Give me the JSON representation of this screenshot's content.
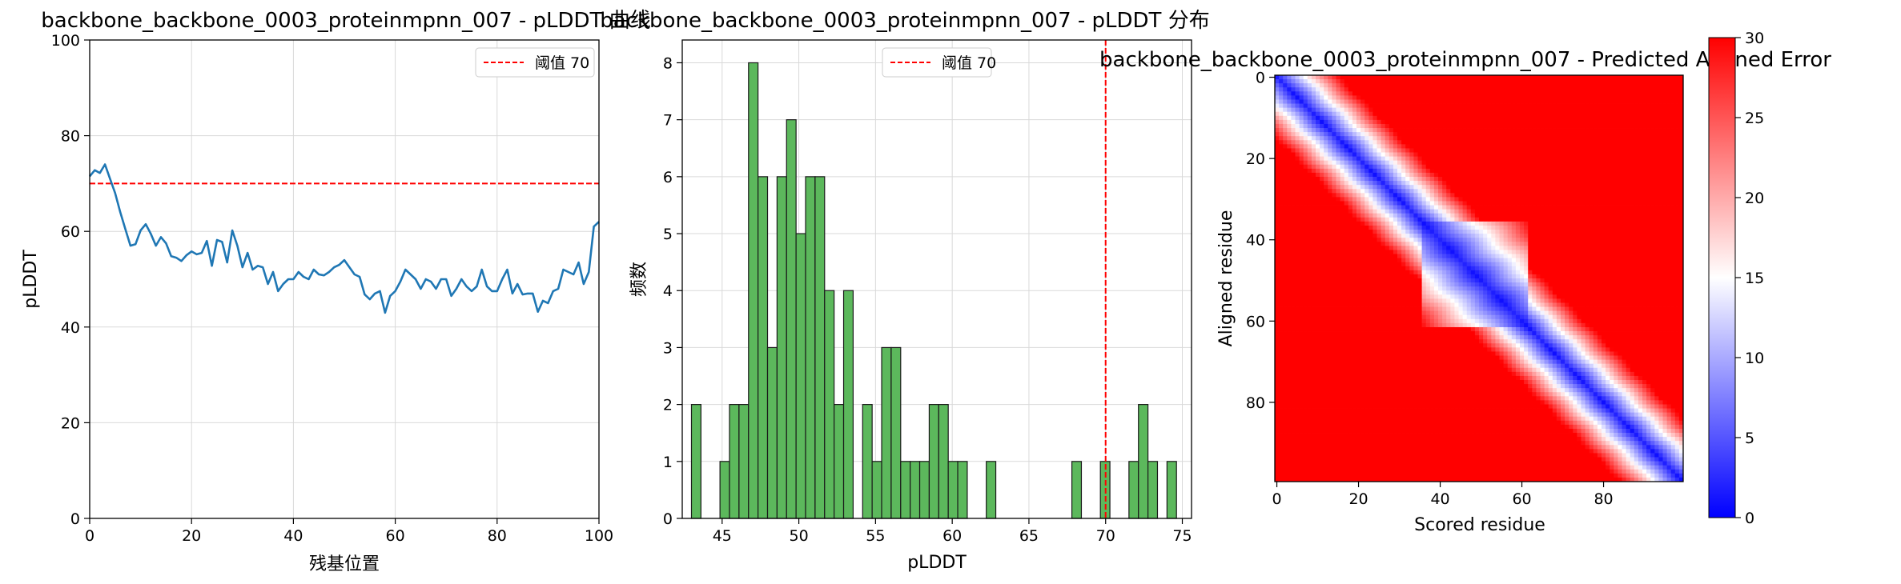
{
  "colors": {
    "line": "#1f77b4",
    "threshold": "#ff0000",
    "hist_fill": "#5cb85c",
    "hist_edge": "#1a1a1a",
    "grid": "#d9d9d9",
    "cmap_low": "#0000ff",
    "cmap_mid": "#ffffff",
    "cmap_high": "#ff0000"
  },
  "legend_label": "阈值 70",
  "chart_data": [
    {
      "type": "line",
      "title": "backbone_backbone_0003_proteinmpnn_007 - pLDDT 曲线",
      "xlabel": "残基位置",
      "ylabel": "pLDDT",
      "xlim": [
        0,
        100
      ],
      "ylim": [
        0,
        100
      ],
      "xticks": [
        "0",
        "20",
        "40",
        "60",
        "80",
        "100"
      ],
      "yticks": [
        "0",
        "20",
        "40",
        "60",
        "80",
        "100"
      ],
      "grid": true,
      "legend": "top-right",
      "threshold": 70,
      "series": [
        {
          "x": [
            0,
            1,
            2,
            3,
            4,
            5,
            6,
            7,
            8,
            9,
            10,
            11,
            12,
            13,
            14,
            15,
            16,
            17,
            18,
            19,
            20,
            21,
            22,
            23,
            24,
            25,
            26,
            27,
            28,
            29,
            30,
            31,
            32,
            33,
            34,
            35,
            36,
            37,
            38,
            39,
            40,
            41,
            42,
            43,
            44,
            45,
            46,
            47,
            48,
            49,
            50,
            51,
            52,
            53,
            54,
            55,
            56,
            57,
            58,
            59,
            60,
            61,
            62,
            63,
            64,
            65,
            66,
            67,
            68,
            69,
            70,
            71,
            72,
            73,
            74,
            75,
            76,
            77,
            78,
            79,
            80,
            81,
            82,
            83,
            84,
            85,
            86,
            87,
            88,
            89,
            90,
            91,
            92,
            93,
            94,
            95,
            96,
            97,
            98,
            99,
            100
          ],
          "values": [
            71.5,
            72.8,
            72.2,
            74.0,
            71.0,
            68.0,
            64.0,
            60.5,
            57.0,
            57.3,
            60.2,
            61.5,
            59.5,
            57.0,
            58.8,
            57.5,
            54.8,
            54.5,
            53.8,
            55.0,
            55.8,
            55.2,
            55.5,
            58.0,
            52.8,
            58.2,
            57.8,
            53.5,
            60.2,
            57.0,
            52.5,
            55.5,
            52.0,
            52.8,
            52.5,
            49.0,
            51.5,
            47.5,
            49.0,
            50.0,
            50.0,
            51.5,
            50.5,
            50.0,
            52.0,
            51.0,
            50.8,
            51.5,
            52.5,
            53.0,
            54.0,
            52.5,
            51.0,
            50.5,
            46.8,
            45.8,
            47.0,
            47.5,
            43.0,
            46.5,
            47.5,
            49.5,
            52.0,
            51.0,
            50.0,
            48.0,
            50.0,
            49.5,
            48.0,
            50.0,
            50.0,
            46.5,
            48.0,
            50.0,
            48.5,
            47.5,
            48.5,
            52.0,
            48.5,
            47.5,
            47.5,
            50.0,
            52.0,
            47.0,
            49.0,
            46.8,
            47.0,
            47.0,
            43.2,
            45.5,
            45.0,
            47.5,
            48.0,
            52.0,
            51.5,
            51.0,
            53.5,
            49.0,
            51.5,
            61.0,
            62.0
          ]
        }
      ]
    },
    {
      "type": "bar",
      "title": "backbone_backbone_0003_proteinmpnn_007 - pLDDT 分布",
      "xlabel": "pLDDT",
      "ylabel": "频数",
      "xlim": [
        42.4,
        75.6
      ],
      "ylim": [
        0,
        8.4
      ],
      "xticks": [
        "45",
        "50",
        "55",
        "60",
        "65",
        "70",
        "75"
      ],
      "yticks": [
        "0",
        "1",
        "2",
        "3",
        "4",
        "5",
        "6",
        "7",
        "8"
      ],
      "grid": true,
      "legend": "top-center",
      "threshold": 70,
      "bin_width": 0.62,
      "bin_start": 43.0,
      "values": [
        2,
        0,
        0,
        1,
        2,
        2,
        8,
        6,
        3,
        6,
        7,
        5,
        6,
        6,
        4,
        2,
        4,
        0,
        2,
        1,
        3,
        3,
        1,
        1,
        1,
        2,
        2,
        1,
        1,
        0,
        0,
        1,
        0,
        0,
        0,
        0,
        0,
        0,
        0,
        0,
        1,
        0,
        0,
        1,
        0,
        0,
        1,
        2,
        1,
        0,
        1
      ]
    },
    {
      "type": "heatmap",
      "title": "backbone_backbone_0003_proteinmpnn_007 - Predicted Aligned Error",
      "xlabel": "Scored residue",
      "ylabel": "Aligned residue",
      "xticks": [
        "0",
        "20",
        "40",
        "60",
        "80"
      ],
      "yticks": [
        "0",
        "20",
        "40",
        "60",
        "80"
      ],
      "n_residues": 100,
      "colorbar_ticks": [
        "0",
        "5",
        "10",
        "15",
        "20",
        "25",
        "30"
      ],
      "vmin": 0,
      "vmax": 30
    }
  ]
}
